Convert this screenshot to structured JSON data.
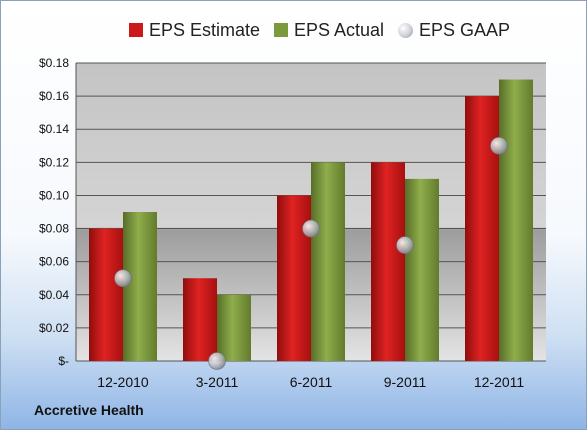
{
  "company_label": "Accretive Health",
  "colors": {
    "estimate": "#cc1a1a",
    "actual": "#7b9a3c",
    "gaap": "#c9ccd2"
  },
  "legend": [
    {
      "name": "EPS Estimate",
      "icon": "square-swatch-icon"
    },
    {
      "name": "EPS Actual",
      "icon": "square-swatch-icon"
    },
    {
      "name": "EPS GAAP",
      "icon": "circle-swatch-icon"
    }
  ],
  "chart_data": {
    "type": "bar",
    "categories": [
      "12-2010",
      "3-2011",
      "6-2011",
      "9-2011",
      "12-2011"
    ],
    "series": [
      {
        "name": "EPS Estimate",
        "values": [
          0.08,
          0.05,
          0.1,
          0.12,
          0.16
        ]
      },
      {
        "name": "EPS Actual",
        "values": [
          0.09,
          0.04,
          0.12,
          0.11,
          0.17
        ]
      },
      {
        "name": "EPS GAAP",
        "type": "scatter",
        "values": [
          0.05,
          0.0,
          0.08,
          0.07,
          0.13
        ]
      }
    ],
    "ylim": [
      0,
      0.18
    ],
    "yticks": [
      0,
      0.02,
      0.04,
      0.06,
      0.08,
      0.1,
      0.12,
      0.14,
      0.16,
      0.18
    ],
    "ytick_labels": [
      "$-",
      "$0.02",
      "$0.04",
      "$0.06",
      "$0.08",
      "$0.10",
      "$0.12",
      "$0.14",
      "$0.16",
      "$0.18"
    ],
    "grid": true,
    "legend_position": "top",
    "xlabel": "",
    "ylabel": "",
    "title": ""
  }
}
